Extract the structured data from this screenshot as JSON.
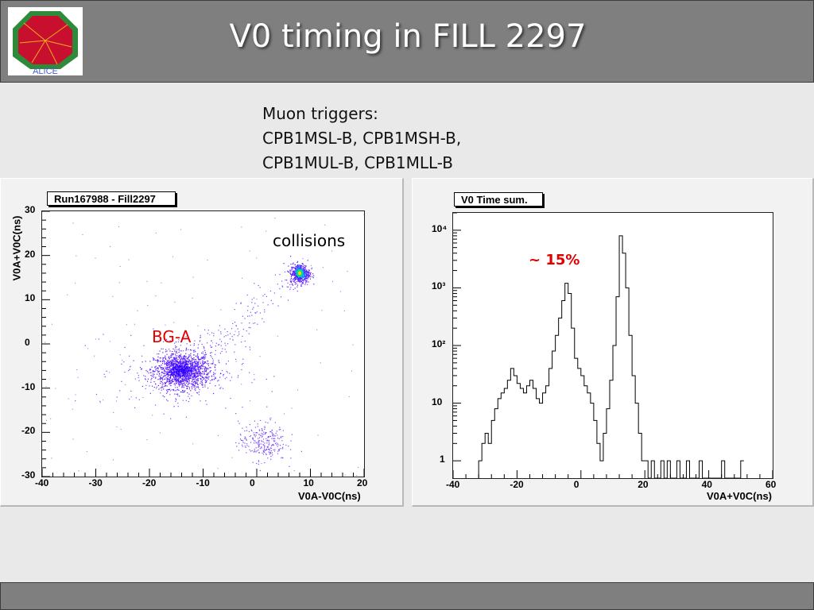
{
  "slide": {
    "title": "V0 timing in FILL 2297",
    "logo_text": "ALICE",
    "triggers": [
      "Muon triggers:",
      "CPB1MSL-B, CPB1MSH-B,",
      "CPB1MUL-B, CPB1MLL-B"
    ]
  },
  "colors": {
    "bar": "#7f7f7f",
    "annotation_red": "#e00000",
    "scatter": "#5a1cff"
  },
  "chart_data": [
    {
      "type": "scatter",
      "title": "Run167988 - Fill2297",
      "xlabel": "V0A-V0C(ns)",
      "ylabel": "V0A+V0C(ns)",
      "xlim": [
        -40,
        20
      ],
      "ylim": [
        -30,
        30
      ],
      "x_ticks": [
        "-40",
        "-30",
        "-20",
        "-10",
        "0",
        "10",
        "20"
      ],
      "y_ticks": [
        "-30",
        "-20",
        "-10",
        "0",
        "10",
        "20",
        "30"
      ],
      "clusters": [
        {
          "name": "BG-A",
          "center": [
            -14,
            -6
          ]
        },
        {
          "name": "collisions",
          "center": [
            8,
            16
          ]
        },
        {
          "name": "",
          "center": [
            1,
            -22
          ]
        }
      ],
      "annotations": [
        {
          "text": "collisions",
          "color": "#000000"
        },
        {
          "text": "BG-A",
          "color": "#e00000"
        }
      ]
    },
    {
      "type": "histogram",
      "title": "V0 Time sum.",
      "xlabel": "V0A+V0C(ns)",
      "ylabel": "",
      "xlim": [
        -40,
        60
      ],
      "ylim": [
        0.5,
        20000
      ],
      "log_y": true,
      "x_ticks": [
        "-40",
        "-20",
        "0",
        "20",
        "40",
        "60"
      ],
      "y_ticks": [
        {
          "v": 1,
          "t": "1"
        },
        {
          "v": 10,
          "t": "10"
        },
        {
          "v": 100,
          "t": "10²"
        },
        {
          "v": 1000,
          "t": "10³"
        },
        {
          "v": 10000,
          "t": "10⁴"
        }
      ],
      "bins_start": -32,
      "bin_width": 1,
      "counts": [
        1,
        2,
        3,
        2,
        5,
        8,
        12,
        15,
        18,
        25,
        40,
        30,
        22,
        18,
        15,
        20,
        25,
        18,
        12,
        10,
        15,
        20,
        40,
        80,
        150,
        300,
        600,
        1200,
        800,
        200,
        60,
        40,
        30,
        20,
        15,
        10,
        5,
        2,
        1,
        3,
        8,
        25,
        100,
        700,
        8000,
        4000,
        1000,
        150,
        30,
        10,
        3,
        1,
        1,
        0,
        1,
        0,
        0,
        1,
        0,
        1,
        0,
        0,
        1,
        0,
        0,
        1,
        0,
        0,
        0,
        1,
        0,
        0,
        0,
        0,
        0,
        0,
        1,
        0,
        0,
        0,
        0,
        0,
        1
      ],
      "annotations": [
        {
          "text": "~ 15%",
          "color": "#e00000"
        }
      ]
    }
  ]
}
